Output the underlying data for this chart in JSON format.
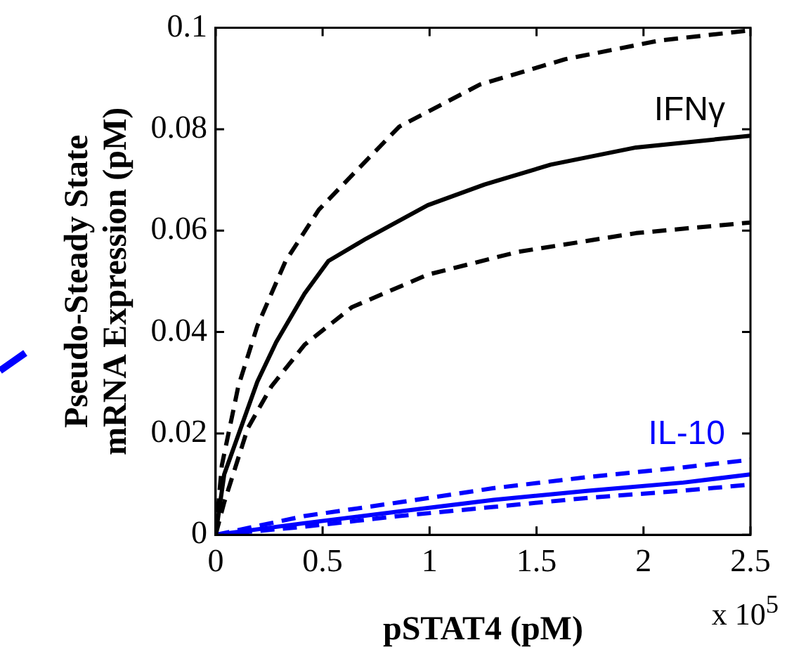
{
  "chart_data": {
    "type": "line",
    "xlabel": "pSTAT4 (pM)",
    "ylabel": "Pseudo-Steady State\nmRNA Expression (pM)",
    "xlim": [
      0,
      2.5
    ],
    "xticks": [
      0,
      0.5,
      1,
      1.5,
      2,
      2.5
    ],
    "ylim": [
      0,
      0.1
    ],
    "yticks": [
      0,
      0.02,
      0.04,
      0.06,
      0.08,
      0.1
    ],
    "grid": false,
    "legend": false,
    "marker": "none",
    "annotations": [
      "x 10$^{5}$",
      {
        "text": "IFNγ",
        "x": 2.5,
        "y": 0.0787
      },
      {
        "text": "IL-10",
        "x": 2.5,
        "y": 0.0148
      }
    ],
    "series": [
      {
        "color": "#000000",
        "line_style": "solid",
        "x": [
          0,
          0.04,
          0.195,
          0.283,
          0.416,
          0.527,
          0.703,
          0.991,
          1.257,
          1.566,
          1.965,
          2.5
        ],
        "values": [
          0,
          0.0119,
          0.0302,
          0.038,
          0.0476,
          0.054,
          0.0584,
          0.065,
          0.0691,
          0.073,
          0.0764,
          0.0787
        ]
      },
      {
        "color": "#000000",
        "line_style": "dashed",
        "x": [
          0,
          0.029,
          0.106,
          0.195,
          0.327,
          0.482,
          0.637,
          0.858,
          1.235,
          1.633,
          2.075,
          2.5
        ],
        "values": [
          0,
          0.0137,
          0.0293,
          0.0412,
          0.054,
          0.0641,
          0.0709,
          0.0805,
          0.0888,
          0.0938,
          0.0975,
          0.0995
        ]
      },
      {
        "color": "#000000",
        "line_style": "dashed",
        "x": [
          0,
          0.04,
          0.15,
          0.261,
          0.416,
          0.637,
          0.991,
          1.412,
          1.965,
          2.5
        ],
        "values": [
          0,
          0.0064,
          0.021,
          0.0293,
          0.0375,
          0.0449,
          0.0513,
          0.0558,
          0.0595,
          0.0616
        ]
      },
      {
        "color": "#0000ff",
        "line_style": "solid",
        "x": [
          0,
          0.416,
          0.858,
          1.3,
          1.743,
          2.186,
          2.5
        ],
        "values": [
          0,
          0.0023,
          0.0046,
          0.0069,
          0.0087,
          0.0103,
          0.0119
        ]
      },
      {
        "color": "#0000ff",
        "line_style": "dashed",
        "x": [
          0,
          0.416,
          0.858,
          1.3,
          1.743,
          2.186,
          2.5
        ],
        "values": [
          0,
          0.0037,
          0.0064,
          0.0092,
          0.0114,
          0.0133,
          0.0148
        ]
      },
      {
        "color": "#0000ff",
        "line_style": "dashed",
        "x": [
          0,
          0.416,
          0.858,
          1.3,
          1.743,
          2.186,
          2.5
        ],
        "values": [
          0,
          0.0016,
          0.0037,
          0.0055,
          0.0073,
          0.0087,
          0.0099
        ]
      }
    ]
  }
}
